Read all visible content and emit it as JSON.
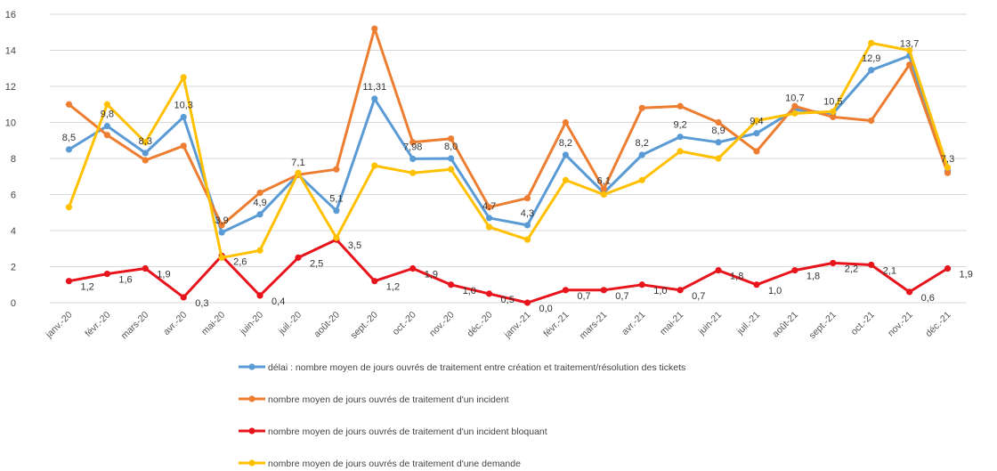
{
  "chart_data": {
    "type": "line",
    "categories": [
      "janv.-20",
      "févr.-20",
      "mars-20",
      "avr.-20",
      "mai-20",
      "juin-20",
      "juil.-20",
      "août-20",
      "sept.-20",
      "oct.-20",
      "nov.-20",
      "déc.-20",
      "janv.-21",
      "févr.-21",
      "mars-21",
      "avr.-21",
      "mai-21",
      "juin-21",
      "juil.-21",
      "août-21",
      "sept.-21",
      "oct.-21",
      "nov.-21",
      "déc.-21"
    ],
    "yticks": [
      "0",
      "2",
      "4",
      "6",
      "8",
      "10",
      "12",
      "14",
      "16"
    ],
    "ylim": [
      0,
      16
    ],
    "grid": true,
    "legend_position": "bottom",
    "title": "",
    "xlabel": "",
    "ylabel": "",
    "series": [
      {
        "name": "délai : nombre moyen de jours ouvrés de traitement entre création et traitement/résolution des tickets",
        "color": "#5B9BD5",
        "values": [
          8.5,
          9.8,
          8.3,
          10.3,
          3.9,
          4.9,
          7.1,
          5.1,
          11.31,
          7.98,
          8.0,
          4.7,
          4.3,
          8.2,
          6.1,
          8.2,
          9.2,
          8.9,
          9.4,
          10.7,
          10.5,
          12.9,
          13.7,
          7.3
        ],
        "labels": [
          "8,5",
          "9,8",
          "8,3",
          "10,3",
          "3,9",
          "4,9",
          "7,1",
          "5,1",
          "11,31",
          "7,98",
          "8,0",
          "4,7",
          "4,3",
          "8,2",
          "6,1",
          "8,2",
          "9,2",
          "8,9",
          "9,4",
          "10,7",
          "10,5",
          "12,9",
          "13,7",
          "7,3"
        ]
      },
      {
        "name": "nombre moyen de jours ouvrés de traitement d'un incident",
        "color": "#ED7D31",
        "values": [
          11.0,
          9.3,
          7.9,
          8.7,
          4.3,
          6.1,
          7.1,
          7.4,
          15.2,
          8.9,
          9.1,
          5.3,
          5.8,
          10.0,
          6.3,
          10.8,
          10.9,
          10.0,
          8.4,
          10.9,
          10.3,
          10.1,
          13.2,
          7.2
        ]
      },
      {
        "name": "nombre moyen de jours ouvrés de traitement d'un incident bloquant",
        "color": "#E8141C",
        "values": [
          1.2,
          1.6,
          1.9,
          0.3,
          2.6,
          0.4,
          2.5,
          3.5,
          1.2,
          1.9,
          1.0,
          0.5,
          0.0,
          0.7,
          0.7,
          1.0,
          0.7,
          1.8,
          1.0,
          1.8,
          2.2,
          2.1,
          0.6,
          1.9
        ],
        "labels": [
          "1,2",
          "1,6",
          "1,9",
          "0,3",
          "2,6",
          "0,4",
          "2,5",
          "3,5",
          "1,2",
          "1,9",
          "1,0",
          "0,5",
          "0,0",
          "0,7",
          "0,7",
          "1,0",
          "0,7",
          "1,8",
          "1,0",
          "1,8",
          "2,2",
          "2,1",
          "0,6",
          "1,9"
        ]
      },
      {
        "name": "nombre moyen de jours ouvrés de traitement d'une demande",
        "color": "#FFC000",
        "values": [
          5.3,
          11.0,
          8.9,
          12.5,
          2.5,
          2.9,
          7.2,
          3.6,
          7.6,
          7.2,
          7.4,
          4.2,
          3.5,
          6.8,
          6.0,
          6.8,
          8.4,
          8.0,
          10.1,
          10.5,
          10.6,
          14.4,
          14.0,
          7.5
        ]
      }
    ]
  }
}
